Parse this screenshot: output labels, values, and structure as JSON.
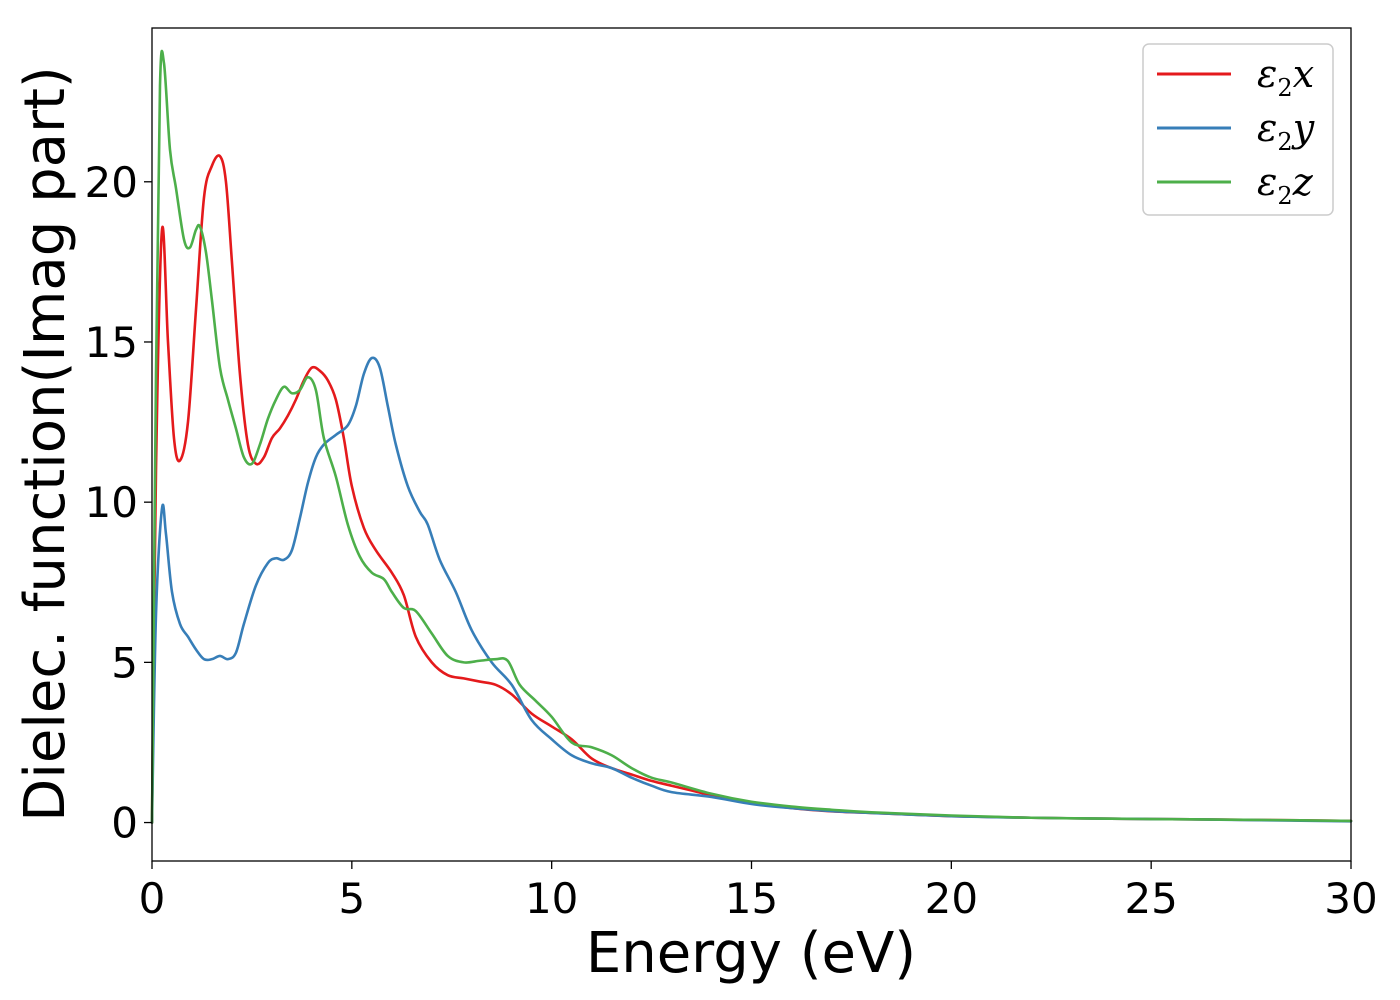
{
  "chart_data": {
    "type": "line",
    "title": "",
    "xlabel": "Energy (eV)",
    "ylabel": "Dielec. function(Imag part)",
    "xlim": [
      0,
      30
    ],
    "ylim": [
      -1.2,
      24.8
    ],
    "xticks": [
      "0",
      "5",
      "10",
      "15",
      "20",
      "25",
      "30"
    ],
    "yticks": [
      "0",
      "5",
      "10",
      "15",
      "20"
    ],
    "grid": false,
    "legend_position": "top-right",
    "series": [
      {
        "name": "ε2x",
        "legend": {
          "base": "ε",
          "sub": "2",
          "suffix": "x"
        },
        "color": "#e41a1c",
        "x": [
          0,
          0.1,
          0.25,
          0.4,
          0.55,
          0.7,
          0.9,
          1.1,
          1.3,
          1.5,
          1.7,
          1.85,
          2.0,
          2.2,
          2.4,
          2.6,
          2.8,
          3.0,
          3.2,
          3.4,
          3.6,
          3.8,
          4.0,
          4.2,
          4.4,
          4.6,
          4.8,
          5.0,
          5.3,
          5.6,
          6.0,
          6.3,
          6.6,
          7.0,
          7.4,
          7.8,
          8.2,
          8.6,
          9.0,
          9.5,
          10.0,
          10.5,
          11.0,
          11.5,
          12.0,
          12.5,
          13.0,
          13.5,
          14.0,
          15.0,
          16.0,
          17.0,
          18.0,
          19.0,
          20.0,
          22.0,
          24.0,
          26.0,
          28.0,
          30.0
        ],
        "y": [
          0,
          11.0,
          18.5,
          15.0,
          12.0,
          11.3,
          12.5,
          16.0,
          19.5,
          20.5,
          20.8,
          20.0,
          17.5,
          14.0,
          11.8,
          11.2,
          11.4,
          12.0,
          12.3,
          12.7,
          13.2,
          13.8,
          14.2,
          14.1,
          13.8,
          13.2,
          12.0,
          10.5,
          9.2,
          8.5,
          7.8,
          7.1,
          5.8,
          5.0,
          4.6,
          4.5,
          4.4,
          4.3,
          4.0,
          3.4,
          3.0,
          2.6,
          2.0,
          1.7,
          1.5,
          1.3,
          1.15,
          1.0,
          0.85,
          0.62,
          0.45,
          0.35,
          0.3,
          0.25,
          0.2,
          0.15,
          0.12,
          0.1,
          0.08,
          0.05
        ]
      },
      {
        "name": "ε2y",
        "legend": {
          "base": "ε",
          "sub": "2",
          "suffix": "y"
        },
        "color": "#377eb8",
        "x": [
          0,
          0.1,
          0.25,
          0.35,
          0.5,
          0.7,
          0.9,
          1.1,
          1.3,
          1.5,
          1.7,
          1.9,
          2.1,
          2.3,
          2.6,
          2.9,
          3.1,
          3.3,
          3.5,
          3.7,
          3.9,
          4.1,
          4.3,
          4.6,
          4.9,
          5.1,
          5.3,
          5.5,
          5.7,
          5.9,
          6.1,
          6.4,
          6.7,
          6.9,
          7.2,
          7.6,
          8.0,
          8.5,
          9.0,
          9.5,
          10.0,
          10.5,
          11.0,
          11.5,
          12.0,
          12.5,
          13.0,
          14.0,
          15.0,
          16.0,
          17.0,
          18.0,
          20.0,
          22.0,
          24.0,
          26.0,
          28.0,
          30.0
        ],
        "y": [
          0,
          6.5,
          9.8,
          9.0,
          7.2,
          6.2,
          5.8,
          5.4,
          5.1,
          5.1,
          5.2,
          5.1,
          5.3,
          6.2,
          7.4,
          8.1,
          8.25,
          8.2,
          8.5,
          9.5,
          10.6,
          11.4,
          11.8,
          12.1,
          12.4,
          13.0,
          14.0,
          14.5,
          14.2,
          13.0,
          11.8,
          10.5,
          9.7,
          9.3,
          8.2,
          7.2,
          6.0,
          5.0,
          4.3,
          3.2,
          2.6,
          2.1,
          1.85,
          1.7,
          1.4,
          1.15,
          0.95,
          0.8,
          0.58,
          0.45,
          0.36,
          0.3,
          0.2,
          0.15,
          0.12,
          0.1,
          0.07,
          0.04
        ]
      },
      {
        "name": "ε2z",
        "legend": {
          "base": "ε",
          "sub": "2",
          "suffix": "z"
        },
        "color": "#4daf4a",
        "x": [
          0,
          0.1,
          0.2,
          0.3,
          0.45,
          0.6,
          0.8,
          0.95,
          1.1,
          1.2,
          1.35,
          1.5,
          1.7,
          1.9,
          2.1,
          2.3,
          2.5,
          2.7,
          2.9,
          3.1,
          3.3,
          3.5,
          3.7,
          3.9,
          4.1,
          4.3,
          4.6,
          4.9,
          5.2,
          5.5,
          5.8,
          6.0,
          6.3,
          6.6,
          7.0,
          7.4,
          7.8,
          8.2,
          8.6,
          8.9,
          9.2,
          9.6,
          10.0,
          10.5,
          11.0,
          11.5,
          12.0,
          12.5,
          13.0,
          14.0,
          15.0,
          16.0,
          17.0,
          18.0,
          20.0,
          22.0,
          24.0,
          26.0,
          28.0,
          30.0
        ],
        "y": [
          0,
          14.0,
          23.0,
          23.7,
          21.0,
          19.8,
          18.2,
          17.95,
          18.5,
          18.6,
          17.8,
          16.3,
          14.2,
          13.2,
          12.3,
          11.4,
          11.2,
          11.8,
          12.6,
          13.2,
          13.6,
          13.4,
          13.5,
          13.9,
          13.5,
          12.0,
          10.8,
          9.3,
          8.3,
          7.8,
          7.6,
          7.2,
          6.7,
          6.6,
          5.9,
          5.2,
          5.0,
          5.05,
          5.1,
          5.05,
          4.3,
          3.8,
          3.3,
          2.5,
          2.35,
          2.1,
          1.7,
          1.4,
          1.25,
          0.9,
          0.65,
          0.5,
          0.4,
          0.32,
          0.22,
          0.15,
          0.12,
          0.1,
          0.08,
          0.05
        ]
      }
    ]
  }
}
